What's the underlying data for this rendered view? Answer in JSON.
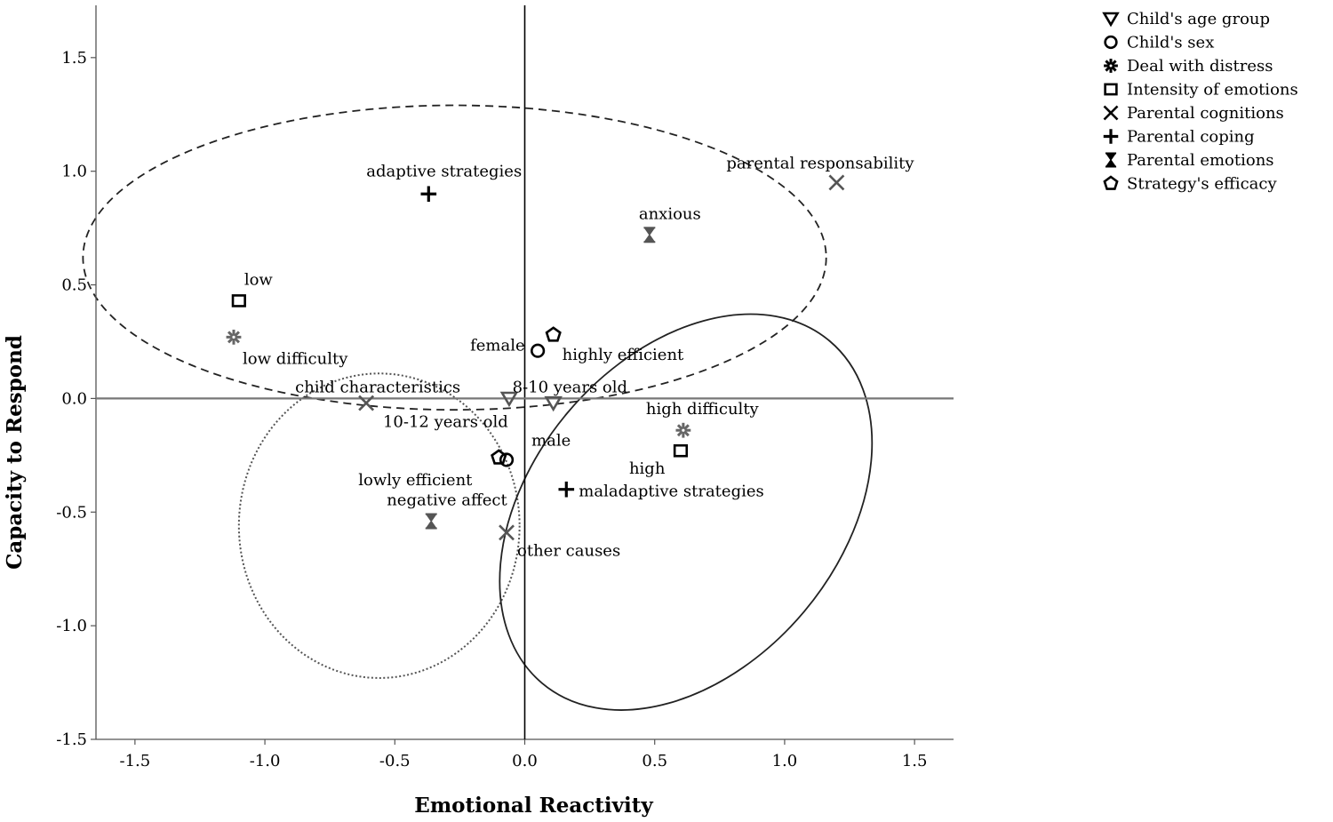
{
  "chart_data": {
    "type": "scatter",
    "xlabel": "Emotional Reactivity",
    "ylabel": "Capacity to Respond",
    "xlim": [
      -1.65,
      1.65
    ],
    "ylim": [
      -1.5,
      1.73
    ],
    "xticks": [
      -1.5,
      -1.0,
      -0.5,
      0.0,
      0.5,
      1.0,
      1.5
    ],
    "xtick_labels": [
      "-1.5",
      "-1.0",
      "-0.5",
      "0.0",
      "0.5",
      "1.0",
      "1.5"
    ],
    "yticks": [
      -1.5,
      -1.0,
      -0.5,
      0.0,
      0.5,
      1.0,
      1.5
    ],
    "ytick_labels": [
      "-1.5",
      "-1.0",
      "-0.5",
      "0.0",
      "0.5",
      "1.0",
      "1.5"
    ],
    "grid": false,
    "legend_position": "top-right",
    "series": [
      {
        "name": "Child's age group",
        "marker": "triangle-down",
        "color": "#555555",
        "points": [
          {
            "label": "8-10 years old",
            "x": 0.11,
            "y": -0.02
          },
          {
            "label": "10-12 years old",
            "x": -0.06,
            "y": 0.0
          }
        ]
      },
      {
        "name": "Child's sex",
        "marker": "circle",
        "color": "#000000",
        "points": [
          {
            "label": "female",
            "x": 0.05,
            "y": 0.21
          },
          {
            "label": "male",
            "x": -0.07,
            "y": -0.27
          }
        ]
      },
      {
        "name": "Deal with distress",
        "marker": "sunburst",
        "color": "#666666",
        "points": [
          {
            "label": "low difficulty",
            "x": -1.12,
            "y": 0.27
          },
          {
            "label": "high difficulty",
            "x": 0.61,
            "y": -0.14
          }
        ]
      },
      {
        "name": "Intensity of emotions",
        "marker": "square",
        "color": "#000000",
        "points": [
          {
            "label": "low",
            "x": -1.1,
            "y": 0.43
          },
          {
            "label": "high",
            "x": 0.6,
            "y": -0.23
          }
        ]
      },
      {
        "name": "Parental cognitions",
        "marker": "x",
        "color": "#555555",
        "points": [
          {
            "label": "parental responsability",
            "x": 1.2,
            "y": 0.95
          },
          {
            "label": "child characteristics",
            "x": -0.61,
            "y": -0.02
          },
          {
            "label": "other causes",
            "x": -0.07,
            "y": -0.59
          }
        ]
      },
      {
        "name": "Parental coping",
        "marker": "plus",
        "color": "#000000",
        "points": [
          {
            "label": "adaptive strategies",
            "x": -0.37,
            "y": 0.9
          },
          {
            "label": "maladaptive strategies",
            "x": 0.16,
            "y": -0.4
          }
        ]
      },
      {
        "name": "Parental emotions",
        "marker": "hourglass",
        "color": "#555555",
        "points": [
          {
            "label": "anxious",
            "x": 0.48,
            "y": 0.72
          },
          {
            "label": "negative affect",
            "x": -0.36,
            "y": -0.54
          }
        ]
      },
      {
        "name": "Strategy's efficacy",
        "marker": "pentagon",
        "color": "#000000",
        "points": [
          {
            "label": "highly efficient",
            "x": 0.11,
            "y": 0.28
          },
          {
            "label": "lowly efficient",
            "x": -0.1,
            "y": -0.26
          }
        ]
      }
    ],
    "ellipses": [
      {
        "style": "dashed",
        "cx": -0.27,
        "cy": 0.62,
        "rx": 1.43,
        "ry": 0.67,
        "angle": 0
      },
      {
        "style": "dotted",
        "cx": -0.56,
        "cy": -0.56,
        "rx": 0.54,
        "ry": 0.67,
        "angle": 0
      },
      {
        "style": "solid",
        "cx": 0.62,
        "cy": -0.5,
        "rx": 0.86,
        "ry": 0.68,
        "angle": -50
      }
    ]
  }
}
